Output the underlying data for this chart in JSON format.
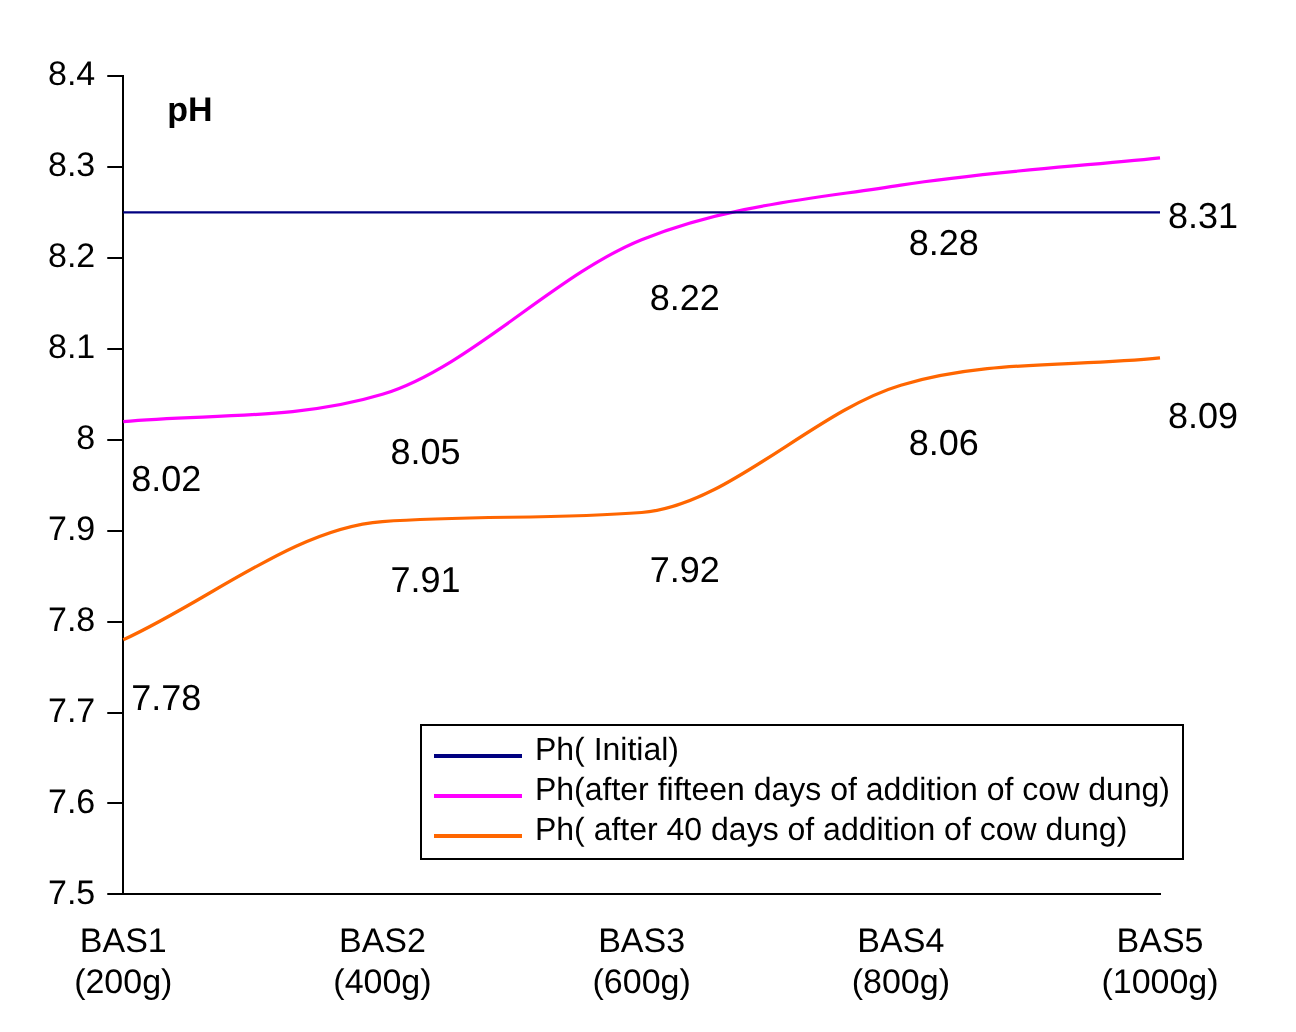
{
  "chart_data": {
    "type": "line",
    "ylabel": "pH",
    "categories": [
      "BAS1\n(200g)",
      "BAS2\n(400g)",
      "BAS3\n(600g)",
      "BAS4\n(800g)",
      "BAS5\n(1000g)"
    ],
    "series": [
      {
        "name": "Ph( Initial)",
        "color": "#000080",
        "values": [
          8.25,
          8.25,
          8.25,
          8.25,
          8.25
        ]
      },
      {
        "name": "Ph(after fifteen days of addition of cow dung)",
        "color": "#ff00ff",
        "values": [
          8.02,
          8.05,
          8.22,
          8.28,
          8.31
        ],
        "value_labels": [
          "8.02",
          "8.05",
          "8.22",
          "8.28",
          "8.31"
        ]
      },
      {
        "name": "Ph( after 40 days of addition of cow dung)",
        "color": "#ff6600",
        "values": [
          7.78,
          7.91,
          7.92,
          8.06,
          8.09
        ],
        "value_labels": [
          "7.78",
          "7.91",
          "7.92",
          "8.06",
          "8.09"
        ]
      }
    ],
    "ylim": [
      7.5,
      8.4
    ],
    "yticks": [
      7.5,
      7.6,
      7.7,
      7.8,
      7.9,
      8,
      8.1,
      8.2,
      8.3,
      8.4
    ],
    "grid": false,
    "legend": "bottom right",
    "marker": "none",
    "line_style": "solid"
  }
}
